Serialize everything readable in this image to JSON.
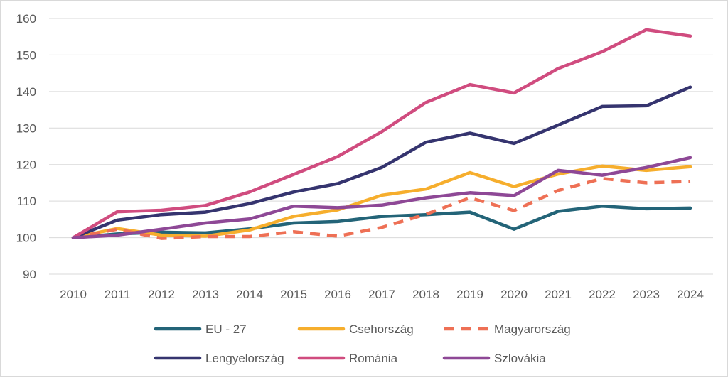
{
  "chart_data": {
    "type": "line",
    "title": "",
    "xlabel": "",
    "ylabel": "",
    "ylim": [
      90,
      160
    ],
    "yticks": [
      90,
      100,
      110,
      120,
      130,
      140,
      150,
      160
    ],
    "grid": "horizontal",
    "legend_position": "bottom",
    "x": [
      "2010",
      "2011",
      "2012",
      "2013",
      "2014",
      "2015",
      "2016",
      "2017",
      "2018",
      "2019",
      "2020",
      "2021",
      "2022",
      "2023",
      "2024"
    ],
    "series": [
      {
        "name": "EU - 27",
        "color": "#236478",
        "dash": "solid",
        "values": [
          100,
          101.0,
          101.5,
          101.3,
          102.4,
          104.0,
          104.4,
          105.8,
          106.3,
          107.0,
          102.3,
          107.2,
          108.6,
          107.9,
          108.1
        ]
      },
      {
        "name": "Csehország",
        "color": "#F6AE2D",
        "dash": "solid",
        "values": [
          100,
          102.5,
          100.7,
          100.4,
          102.1,
          105.8,
          107.6,
          111.6,
          113.3,
          117.8,
          114.0,
          117.4,
          119.6,
          118.4,
          119.4
        ]
      },
      {
        "name": "Magyarország",
        "color": "#EE7055",
        "dash": "dashed",
        "values": [
          100,
          102.3,
          99.8,
          100.3,
          100.3,
          101.6,
          100.4,
          102.8,
          106.4,
          110.9,
          107.4,
          112.9,
          116.2,
          115.0,
          115.4
        ]
      },
      {
        "name": "Lengyelország",
        "color": "#35346F",
        "dash": "solid",
        "values": [
          100,
          104.8,
          106.3,
          107.0,
          109.3,
          112.5,
          114.8,
          119.2,
          126.1,
          128.6,
          125.8,
          130.8,
          135.9,
          136.1,
          141.2
        ]
      },
      {
        "name": "Románia",
        "color": "#D04C7F",
        "dash": "solid",
        "values": [
          100,
          107.1,
          107.5,
          108.8,
          112.5,
          117.3,
          122.2,
          129.0,
          137.0,
          141.9,
          139.6,
          146.3,
          150.9,
          156.9,
          155.2
        ]
      },
      {
        "name": "Szlovákia",
        "color": "#8E4896",
        "dash": "solid",
        "values": [
          100,
          100.7,
          102.3,
          104.0,
          105.1,
          108.6,
          108.2,
          108.9,
          110.9,
          112.3,
          111.5,
          118.4,
          117.1,
          119.2,
          121.9
        ]
      }
    ]
  }
}
